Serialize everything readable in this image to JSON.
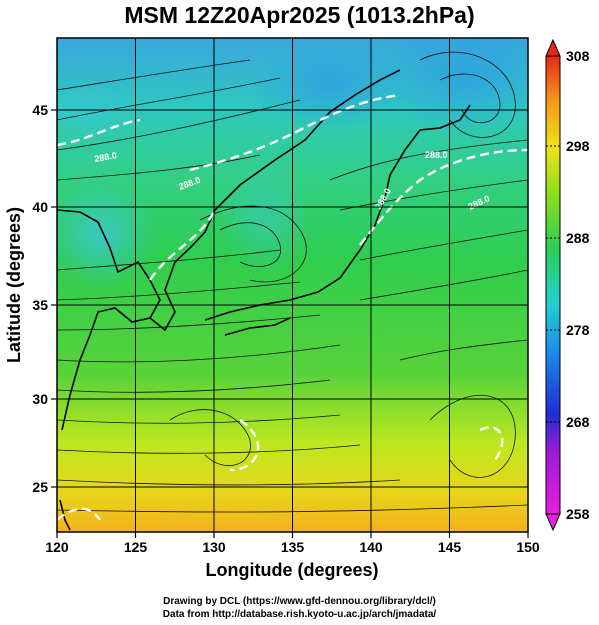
{
  "title": "MSM 12Z20Apr2025 (1013.2hPa)",
  "x_axis": {
    "label": "Longitude (degrees)",
    "ticks": [
      "120",
      "125",
      "130",
      "135",
      "140",
      "145",
      "150"
    ],
    "range": [
      120,
      150
    ]
  },
  "y_axis": {
    "label": "Latitude  (degrees)",
    "ticks": [
      "25",
      "30",
      "35",
      "40",
      "45"
    ],
    "range": [
      22.4,
      47.6
    ]
  },
  "colorbar": {
    "ticks": [
      "258",
      "268",
      "278",
      "288",
      "298",
      "308"
    ],
    "range": [
      258,
      308
    ]
  },
  "contour_labels": [
    "288.0",
    "288.0",
    "288.0",
    "288.0",
    "288.0"
  ],
  "credits": {
    "line1": "Drawing by DCL (https://www.gfd-dennou.org/library/dcl/)",
    "line2": "Data from http://database.rish.kyoto-u.ac.jp/arch/jmadata/"
  },
  "colors": {
    "warm": "#f5a623",
    "yellow": "#f2e21a",
    "green": "#39c23a",
    "cyan": "#1fc7c7",
    "sky": "#2fa2e0",
    "blue": "#1f3fd0",
    "magenta": "#d21bd2"
  }
}
